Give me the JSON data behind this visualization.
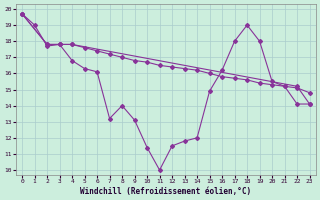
{
  "xlabel": "Windchill (Refroidissement éolien,°C)",
  "bg_color": "#cceedd",
  "grid_color": "#aacccc",
  "line_color": "#883399",
  "xlim_min": -0.5,
  "xlim_max": 23.5,
  "ylim_min": 9.7,
  "ylim_max": 20.3,
  "xticks": [
    0,
    1,
    2,
    3,
    4,
    5,
    6,
    7,
    8,
    9,
    10,
    11,
    12,
    13,
    14,
    15,
    16,
    17,
    18,
    19,
    20,
    21,
    22,
    23
  ],
  "yticks": [
    10,
    11,
    12,
    13,
    14,
    15,
    16,
    17,
    18,
    19,
    20
  ],
  "curve1_x": [
    0,
    1,
    2,
    3,
    4,
    5,
    6,
    7,
    8,
    9,
    10,
    11,
    12,
    13,
    14,
    15,
    16,
    17,
    18,
    19,
    20,
    21,
    22,
    23
  ],
  "curve1_y": [
    19.7,
    19.0,
    17.7,
    17.8,
    16.8,
    16.3,
    16.1,
    13.2,
    14.0,
    13.1,
    11.4,
    10.0,
    11.5,
    11.8,
    12.0,
    14.9,
    16.2,
    18.0,
    19.0,
    18.0,
    15.5,
    15.2,
    14.1,
    14.1
  ],
  "curve2_x": [
    0,
    2,
    3,
    4,
    22,
    23
  ],
  "curve2_y": [
    19.7,
    17.8,
    17.8,
    17.8,
    15.2,
    14.1
  ],
  "curve3_x": [
    0,
    2,
    3,
    4,
    5,
    6,
    7,
    8,
    9,
    10,
    11,
    12,
    13,
    14,
    15,
    16,
    17,
    18,
    19,
    20,
    21,
    22,
    23
  ],
  "curve3_y": [
    19.7,
    17.8,
    17.8,
    17.8,
    17.6,
    17.4,
    17.2,
    17.0,
    16.8,
    16.7,
    16.5,
    16.4,
    16.3,
    16.2,
    16.0,
    15.8,
    15.7,
    15.6,
    15.4,
    15.3,
    15.2,
    15.1,
    14.8
  ]
}
